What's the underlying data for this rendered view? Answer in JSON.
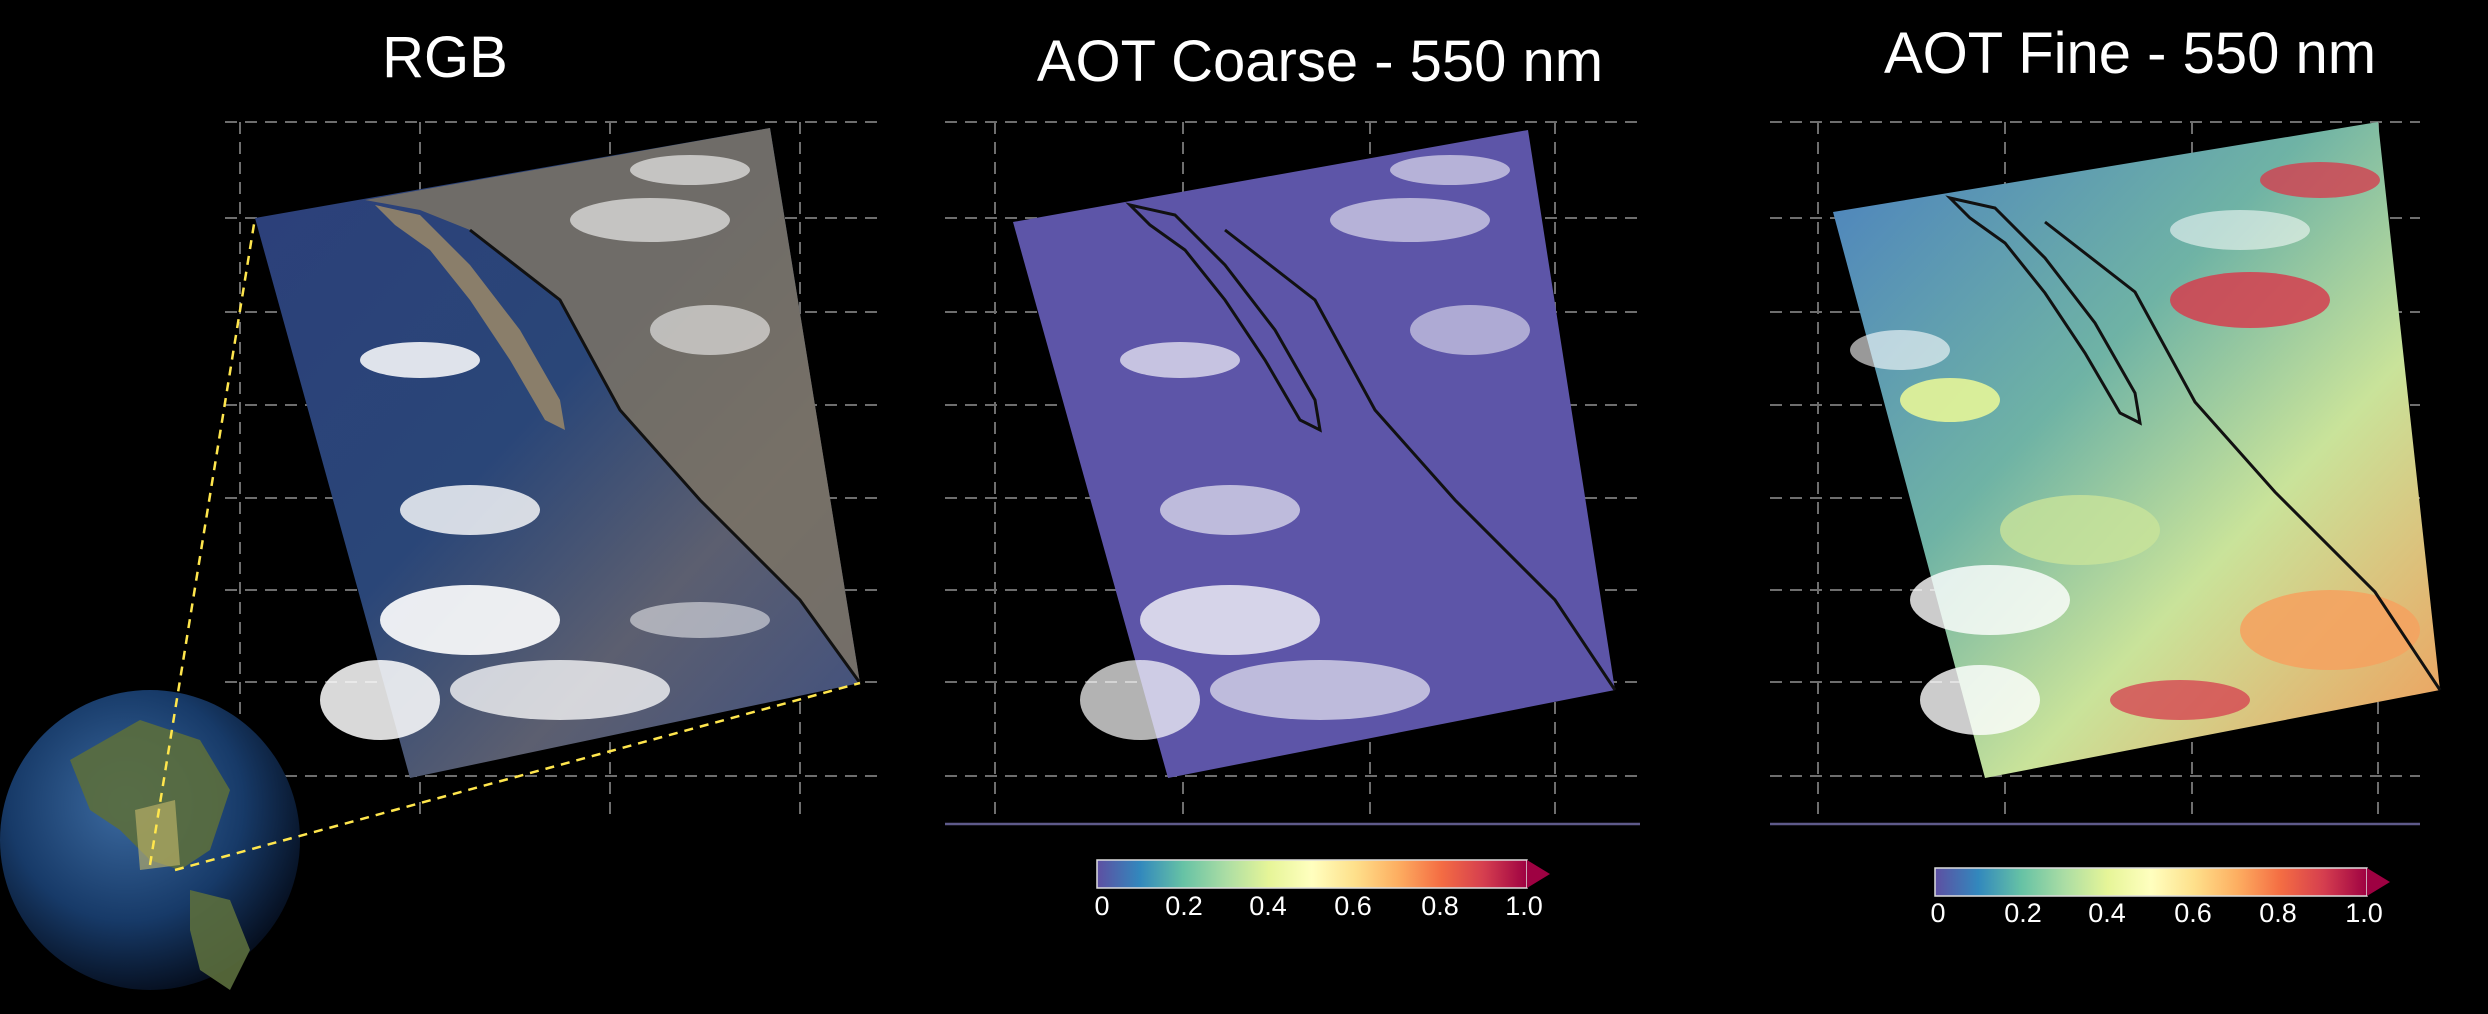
{
  "panels": [
    {
      "title": "RGB"
    },
    {
      "title": "AOT Coarse - 550 nm"
    },
    {
      "title": "AOT Fine - 550 nm"
    }
  ],
  "colorbars": {
    "coarse": {
      "ticks": [
        "0",
        "0.2",
        "0.4",
        "0.6",
        "0.8",
        "1.0"
      ]
    },
    "fine": {
      "ticks": [
        "0",
        "0.2",
        "0.4",
        "0.6",
        "0.8",
        "1.0"
      ]
    }
  },
  "colors": {
    "background": "#000000",
    "grid": "#6e6e6e",
    "outline": "#ffe64d",
    "colormap": [
      "#5e4fa2",
      "#3288bd",
      "#66c2a5",
      "#abdda4",
      "#e6f598",
      "#ffffbf",
      "#fee08b",
      "#fdae61",
      "#f46d43",
      "#d53e4f",
      "#9e0142"
    ]
  }
}
